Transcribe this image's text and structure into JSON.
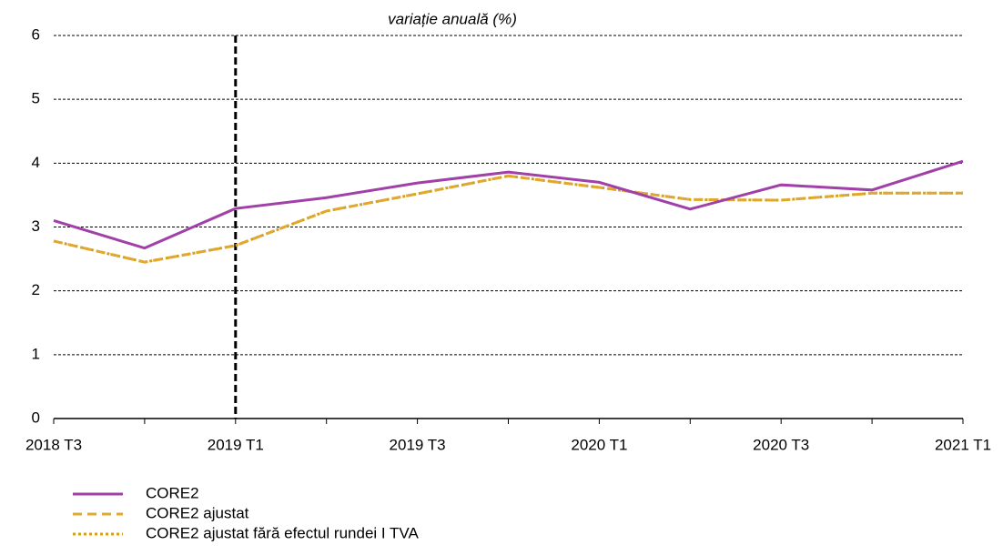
{
  "chart_data": {
    "type": "line",
    "title": "variație anuală (%)",
    "categories": [
      "2018 T3",
      null,
      "2019 T1",
      null,
      "2019 T3",
      null,
      "2020 T1",
      null,
      "2020 T3",
      null,
      "2021 T1"
    ],
    "series": [
      {
        "name": "CORE2",
        "color": "#a040a8",
        "dash": "solid",
        "values": [
          3.1,
          2.67,
          3.29,
          3.46,
          3.69,
          3.86,
          3.7,
          3.28,
          3.66,
          3.58,
          4.03
        ]
      },
      {
        "name": "CORE2 ajustat",
        "color": "#e0a830",
        "dash": "dashed",
        "values": [
          2.78,
          2.45,
          2.71,
          3.25,
          3.52,
          3.8,
          3.62,
          3.43,
          3.42,
          3.53,
          3.53
        ]
      },
      {
        "name": "CORE2 ajustat fără efectul rundei I TVA",
        "color": "#d4a017",
        "dash": "dotted",
        "values": [
          2.78,
          2.45,
          2.71,
          3.25,
          3.52,
          3.8,
          3.62,
          3.43,
          3.42,
          3.53,
          3.53
        ]
      }
    ],
    "ylim": [
      0,
      6
    ],
    "yticks": [
      0,
      1,
      2,
      3,
      4,
      5,
      6
    ],
    "grid": true,
    "vline": "2019 T1"
  }
}
